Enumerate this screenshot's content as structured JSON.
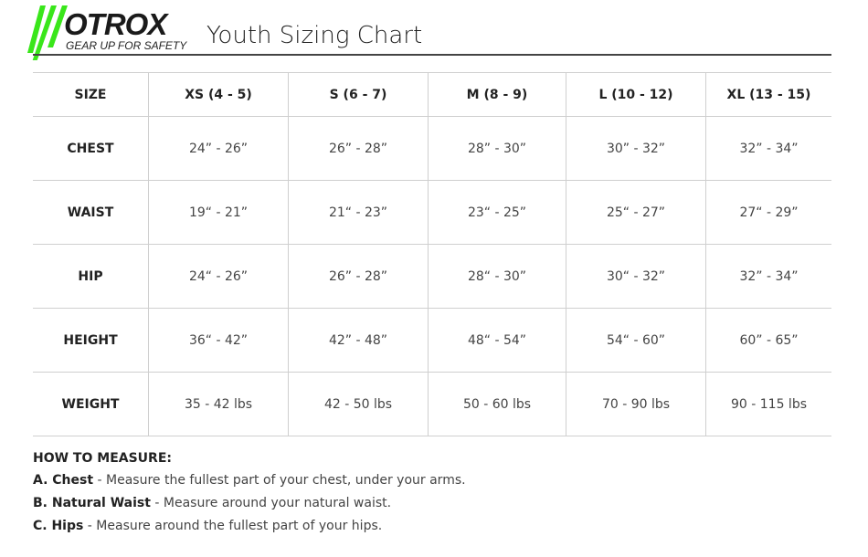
{
  "logo": {
    "brand": "OTROX",
    "tagline": "GEAR UP FOR SAFETY",
    "accent": "#39e61a"
  },
  "title": "Youth Sizing Chart",
  "table": {
    "headers": [
      "SIZE",
      "XS (4 - 5)",
      "S (6 - 7)",
      "M (8 - 9)",
      "L (10 - 12)",
      "XL (13 - 15)"
    ],
    "rows": [
      {
        "label": "CHEST",
        "values": [
          "24” - 26”",
          "26” - 28”",
          "28” - 30”",
          "30” - 32”",
          "32” - 34”"
        ]
      },
      {
        "label": "WAIST",
        "values": [
          "19“ - 21”",
          "21“ - 23”",
          "23“ - 25”",
          "25“ - 27”",
          "27“ - 29”"
        ]
      },
      {
        "label": "HIP",
        "values": [
          "24“ - 26”",
          "26” - 28”",
          "28“ - 30”",
          "30“ - 32”",
          "32” - 34”"
        ]
      },
      {
        "label": "HEIGHT",
        "values": [
          "36“ - 42”",
          "42” - 48”",
          "48“ - 54”",
          "54“ - 60”",
          "60” - 65”"
        ]
      },
      {
        "label": "WEIGHT",
        "values": [
          "35 - 42 lbs",
          "42 - 50 lbs",
          "50 - 60 lbs",
          "70 - 90 lbs",
          "90 - 115 lbs"
        ]
      }
    ]
  },
  "how": {
    "heading": "HOW TO MEASURE:",
    "items": [
      {
        "term": "A. Chest",
        "desc": " - Measure the fullest part of your chest, under your arms."
      },
      {
        "term": "B. Natural Waist",
        "desc": " - Measure around your natural waist."
      },
      {
        "term": "C. Hips",
        "desc": " - Measure around the fullest part of your hips."
      }
    ]
  }
}
